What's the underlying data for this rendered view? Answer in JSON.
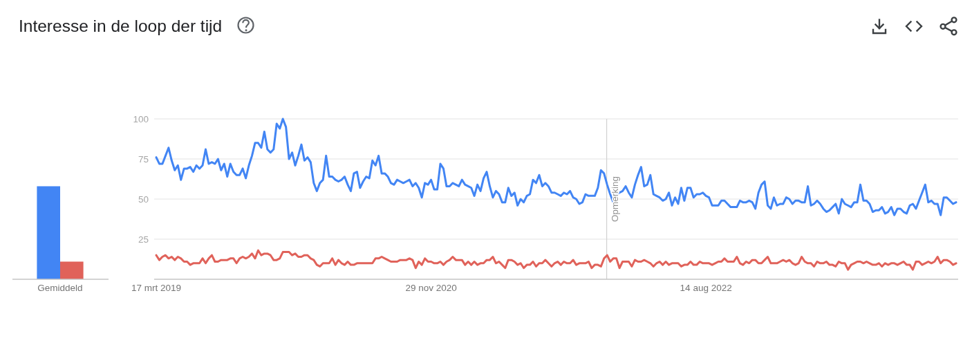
{
  "chart_data": [
    {
      "type": "bar",
      "categories": [
        "Gemiddeld"
      ],
      "series": [
        {
          "color": "#4285f4",
          "values": [
            58
          ]
        },
        {
          "color": "#e0625a",
          "values": [
            11
          ]
        }
      ],
      "ylim": [
        0,
        100
      ],
      "tick_labels": "x"
    },
    {
      "type": "line",
      "title": "Interesse in de loop der tijd",
      "x": [
        "2019-03-17",
        "2019-03-24",
        "2019-03-31",
        "2019-04-07",
        "2019-04-14",
        "2019-04-21",
        "2019-04-28",
        "2019-05-05",
        "2019-05-12",
        "2019-05-19",
        "2019-05-26",
        "2019-06-02",
        "2019-06-09",
        "2019-06-16",
        "2019-06-23",
        "2019-06-30",
        "2019-07-07",
        "2019-07-14",
        "2019-07-21",
        "2019-07-28",
        "2019-08-04",
        "2019-08-11",
        "2019-08-18",
        "2019-08-25",
        "2019-09-01",
        "2019-09-08",
        "2019-09-15",
        "2019-09-22",
        "2019-09-29",
        "2019-10-06",
        "2019-10-13",
        "2019-10-20",
        "2019-10-27",
        "2019-11-03",
        "2019-11-10",
        "2019-11-17",
        "2019-11-24",
        "2019-12-01",
        "2019-12-08",
        "2019-12-15",
        "2019-12-22",
        "2019-12-29",
        "2020-01-05",
        "2020-01-12",
        "2020-01-19",
        "2020-01-26",
        "2020-02-02",
        "2020-02-09",
        "2020-02-16",
        "2020-02-23",
        "2020-03-01",
        "2020-03-08",
        "2020-03-15",
        "2020-03-22",
        "2020-03-29",
        "2020-04-05",
        "2020-04-12",
        "2020-04-19",
        "2020-04-26",
        "2020-05-03",
        "2020-05-10",
        "2020-05-17",
        "2020-05-24",
        "2020-05-31",
        "2020-06-07",
        "2020-06-14",
        "2020-06-21",
        "2020-06-28",
        "2020-07-05",
        "2020-07-12",
        "2020-07-19",
        "2020-07-26",
        "2020-08-02",
        "2020-08-09",
        "2020-08-16",
        "2020-08-23",
        "2020-08-30",
        "2020-09-06",
        "2020-09-13",
        "2020-09-20",
        "2020-09-27",
        "2020-10-04",
        "2020-10-11",
        "2020-10-18",
        "2020-10-25",
        "2020-11-01",
        "2020-11-08",
        "2020-11-15",
        "2020-11-22",
        "2020-11-29",
        "2020-12-06",
        "2020-12-13",
        "2020-12-20",
        "2020-12-27",
        "2021-01-03",
        "2021-01-10",
        "2021-01-17",
        "2021-01-24",
        "2021-01-31",
        "2021-02-07",
        "2021-02-14",
        "2021-02-21",
        "2021-02-28",
        "2021-03-07",
        "2021-03-14",
        "2021-03-21",
        "2021-03-28",
        "2021-04-04",
        "2021-04-11",
        "2021-04-18",
        "2021-04-25",
        "2021-05-02",
        "2021-05-09",
        "2021-05-16",
        "2021-05-23",
        "2021-05-30",
        "2021-06-06",
        "2021-06-13",
        "2021-06-20",
        "2021-06-27",
        "2021-07-04",
        "2021-07-11",
        "2021-07-18",
        "2021-07-25",
        "2021-08-01",
        "2021-08-08",
        "2021-08-15",
        "2021-08-22",
        "2021-08-29",
        "2021-09-05",
        "2021-09-12",
        "2021-09-19",
        "2021-09-26",
        "2021-10-03",
        "2021-10-10",
        "2021-10-17",
        "2021-10-24",
        "2021-10-31",
        "2021-11-07",
        "2021-11-14",
        "2021-11-21",
        "2021-11-28",
        "2021-12-05",
        "2021-12-12",
        "2021-12-19",
        "2021-12-26",
        "2022-01-02",
        "2022-01-09",
        "2022-01-16",
        "2022-01-23",
        "2022-01-30",
        "2022-02-06",
        "2022-02-13",
        "2022-02-20",
        "2022-02-27",
        "2022-03-06",
        "2022-03-13",
        "2022-03-20",
        "2022-03-27",
        "2022-04-03",
        "2022-04-10",
        "2022-04-17",
        "2022-04-24",
        "2022-05-01",
        "2022-05-08",
        "2022-05-15",
        "2022-05-22",
        "2022-05-29",
        "2022-06-05",
        "2022-06-12",
        "2022-06-19",
        "2022-06-26",
        "2022-07-03",
        "2022-07-10",
        "2022-07-17",
        "2022-07-24",
        "2022-07-31",
        "2022-08-07",
        "2022-08-14",
        "2022-08-21",
        "2022-08-28",
        "2022-09-04",
        "2022-09-11",
        "2022-09-18",
        "2022-09-25",
        "2022-10-02",
        "2022-10-09",
        "2022-10-16",
        "2022-10-23",
        "2022-10-30",
        "2022-11-06",
        "2022-11-13",
        "2022-11-20",
        "2022-11-27",
        "2022-12-04",
        "2022-12-11",
        "2022-12-18",
        "2022-12-25",
        "2023-01-01",
        "2023-01-08",
        "2023-01-15",
        "2023-01-22",
        "2023-01-29",
        "2023-02-05",
        "2023-02-12",
        "2023-02-19",
        "2023-02-26",
        "2023-03-05",
        "2023-03-12",
        "2023-03-19",
        "2023-03-26",
        "2023-04-02",
        "2023-04-09",
        "2023-04-16",
        "2023-04-23",
        "2023-04-30",
        "2023-05-07",
        "2023-05-14",
        "2023-05-21",
        "2023-05-28",
        "2023-06-04",
        "2023-06-11",
        "2023-06-18",
        "2023-06-25",
        "2023-07-02",
        "2023-07-09",
        "2023-07-16",
        "2023-07-23",
        "2023-07-30",
        "2023-08-06",
        "2023-08-13",
        "2023-08-20",
        "2023-08-27",
        "2023-09-03",
        "2023-09-10",
        "2023-09-17",
        "2023-09-24",
        "2023-10-01",
        "2023-10-08",
        "2023-10-15",
        "2023-10-22",
        "2023-10-29",
        "2023-11-05",
        "2023-11-12",
        "2023-11-19",
        "2023-11-26",
        "2023-12-03",
        "2023-12-10",
        "2023-12-17",
        "2023-12-24",
        "2023-12-31",
        "2024-01-07",
        "2024-01-14",
        "2024-01-21",
        "2024-01-28",
        "2024-02-04",
        "2024-02-11",
        "2024-02-18",
        "2024-02-25",
        "2024-03-03"
      ],
      "series": [
        {
          "color": "#4285f4",
          "values": [
            76,
            72,
            72,
            77,
            82,
            74,
            68,
            71,
            62,
            69,
            69,
            70,
            67,
            71,
            69,
            71,
            81,
            72,
            73,
            72,
            75,
            68,
            72,
            64,
            72,
            67,
            65,
            65,
            69,
            63,
            71,
            77,
            85,
            85,
            82,
            92,
            81,
            79,
            81,
            97,
            94,
            100,
            95,
            75,
            79,
            71,
            77,
            84,
            74,
            76,
            73,
            60,
            55,
            60,
            62,
            77,
            64,
            64,
            62,
            61,
            62,
            64,
            59,
            55,
            66,
            67,
            57,
            61,
            64,
            63,
            74,
            71,
            77,
            66,
            66,
            64,
            60,
            59,
            62,
            61,
            60,
            61,
            62,
            58,
            60,
            57,
            51,
            60,
            59,
            62,
            56,
            56,
            72,
            69,
            58,
            58,
            60,
            59,
            58,
            62,
            59,
            58,
            57,
            52,
            59,
            55,
            63,
            67,
            58,
            51,
            55,
            53,
            48,
            48,
            57,
            52,
            54,
            46,
            50,
            48,
            52,
            53,
            62,
            60,
            65,
            58,
            60,
            58,
            54,
            54,
            53,
            52,
            54,
            53,
            55,
            51,
            50,
            47,
            48,
            53,
            52,
            52,
            52,
            57,
            68,
            66,
            59,
            53,
            48,
            53,
            54,
            55,
            58,
            54,
            51,
            59,
            65,
            70,
            58,
            59,
            65,
            53,
            52,
            51,
            49,
            50,
            54,
            46,
            51,
            47,
            57,
            49,
            57,
            57,
            51,
            53,
            53,
            54,
            52,
            51,
            46,
            46,
            46,
            49,
            49,
            47,
            45,
            45,
            45,
            49,
            48,
            48,
            49,
            48,
            44,
            54,
            59,
            61,
            46,
            44,
            51,
            46,
            47,
            47,
            51,
            50,
            47,
            49,
            49,
            48,
            48,
            58,
            46,
            47,
            49,
            47,
            44,
            42,
            43,
            45,
            47,
            41,
            50,
            47,
            46,
            45,
            48,
            48,
            59,
            49,
            49,
            47,
            42,
            43,
            43,
            45,
            41,
            42,
            45,
            40,
            44,
            44,
            42,
            41,
            46,
            47,
            44,
            49,
            54,
            59,
            48,
            49,
            47,
            47,
            40,
            51,
            51,
            49,
            47,
            48
          ]
        },
        {
          "color": "#e0625a",
          "values": [
            15,
            12,
            14,
            15,
            13,
            14,
            12,
            14,
            13,
            11,
            11,
            9,
            10,
            10,
            10,
            13,
            10,
            13,
            15,
            11,
            11,
            12,
            12,
            12,
            13,
            13,
            10,
            13,
            14,
            13,
            14,
            16,
            13,
            18,
            15,
            16,
            16,
            15,
            12,
            12,
            13,
            17,
            17,
            17,
            15,
            16,
            14,
            14,
            15,
            15,
            13,
            12,
            9,
            8,
            10,
            10,
            10,
            13,
            9,
            12,
            10,
            9,
            11,
            9,
            9,
            10,
            10,
            10,
            10,
            10,
            10,
            13,
            13,
            14,
            13,
            12,
            11,
            11,
            11,
            12,
            12,
            12,
            13,
            12,
            7,
            11,
            9,
            13,
            11,
            11,
            10,
            10,
            11,
            9,
            11,
            12,
            14,
            12,
            12,
            12,
            9,
            11,
            9,
            11,
            9,
            10,
            10,
            12,
            12,
            14,
            10,
            11,
            9,
            7,
            12,
            12,
            11,
            9,
            10,
            7,
            9,
            9,
            11,
            8,
            10,
            10,
            12,
            10,
            8,
            10,
            11,
            9,
            11,
            10,
            10,
            12,
            9,
            10,
            10,
            10,
            11,
            7,
            9,
            9,
            8,
            13,
            15,
            11,
            13,
            13,
            7,
            11,
            11,
            11,
            8,
            12,
            11,
            11,
            12,
            11,
            10,
            8,
            10,
            11,
            9,
            11,
            9,
            10,
            10,
            10,
            8,
            9,
            9,
            11,
            9,
            9,
            11,
            10,
            10,
            10,
            9,
            10,
            11,
            11,
            13,
            11,
            11,
            11,
            14,
            10,
            9,
            11,
            10,
            12,
            12,
            10,
            10,
            12,
            14,
            10,
            10,
            10,
            11,
            12,
            11,
            12,
            10,
            9,
            10,
            14,
            11,
            10,
            10,
            8,
            11,
            10,
            10,
            11,
            9,
            9,
            8,
            11,
            10,
            10,
            6,
            9,
            10,
            11,
            11,
            10,
            11,
            10,
            9,
            9,
            10,
            8,
            10,
            9,
            10,
            10,
            9,
            10,
            11,
            9,
            9,
            6,
            11,
            11,
            9,
            10,
            11,
            10,
            11,
            14,
            10,
            12,
            12,
            11,
            9,
            10
          ]
        }
      ],
      "xlim": [
        "2019-03-17",
        "2024-03-03"
      ],
      "ylim": [
        0,
        100
      ],
      "xticks": [
        {
          "value": "2019-03-17",
          "label": "17 mrt 2019"
        },
        {
          "value": "2020-11-29",
          "label": "29 nov 2020"
        },
        {
          "value": "2022-08-14",
          "label": "14 aug 2022"
        }
      ],
      "yticks": [
        25,
        50,
        75,
        100
      ],
      "grid": "y",
      "ref_lines": [
        {
          "axis": "x",
          "value": "2022-01-01",
          "label": "Opmerking"
        }
      ]
    }
  ]
}
